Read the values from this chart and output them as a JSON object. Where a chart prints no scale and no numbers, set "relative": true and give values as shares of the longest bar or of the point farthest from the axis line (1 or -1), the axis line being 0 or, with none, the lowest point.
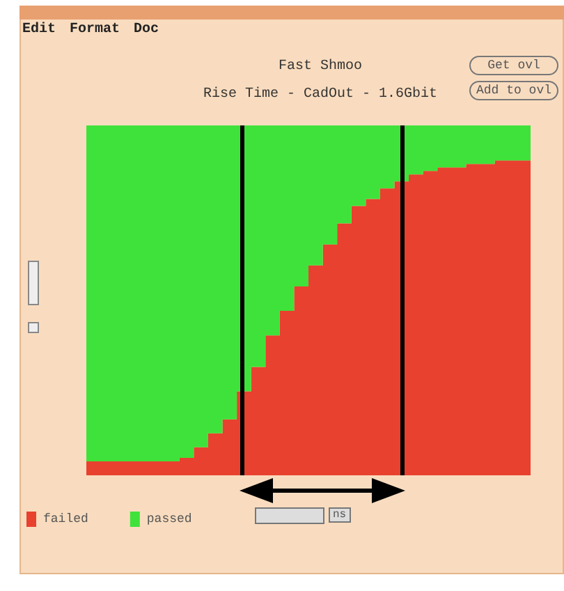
{
  "chart_data": {
    "type": "area",
    "title": "Fast Shmoo",
    "subtitle": "Rise Time - CadOut - 1.6Gbit",
    "relative": true,
    "stacked": true,
    "legend": "bottom left",
    "grid": false,
    "annotations": [
      "Edit",
      "Format",
      "Doc",
      "Get ovl",
      "Add to ovl",
      "ns"
    ],
    "categories": [
      null,
      null,
      null,
      null,
      null,
      null,
      null,
      null,
      null,
      null,
      null,
      null,
      null,
      null,
      null,
      null,
      null,
      null,
      null,
      null,
      null,
      null,
      null,
      null,
      null,
      null,
      null,
      null,
      null,
      null,
      null,
      null
    ],
    "series": [
      {
        "name": "failed",
        "color": "#e8412f",
        "values": [
          0.04,
          0.04,
          0.04,
          0.04,
          0.04,
          0.04,
          0.04,
          0.05,
          0.08,
          0.12,
          0.16,
          0.24,
          0.31,
          0.4,
          0.47,
          0.54,
          0.6,
          0.66,
          0.72,
          0.77,
          0.79,
          0.82,
          0.84,
          0.86,
          0.87,
          0.88,
          0.88,
          0.89,
          0.89,
          0.9,
          0.9,
          0.9
        ]
      },
      {
        "name": "passed",
        "color": "#3fe23a",
        "values": [
          0.96,
          0.96,
          0.96,
          0.96,
          0.96,
          0.96,
          0.96,
          0.95,
          0.92,
          0.88,
          0.84,
          0.76,
          0.69,
          0.6,
          0.53,
          0.46,
          0.4,
          0.34,
          0.28,
          0.23,
          0.21,
          0.18,
          0.16,
          0.14,
          0.13,
          0.12,
          0.12,
          0.11,
          0.11,
          0.1,
          0.1,
          0.1
        ]
      }
    ]
  }
}
